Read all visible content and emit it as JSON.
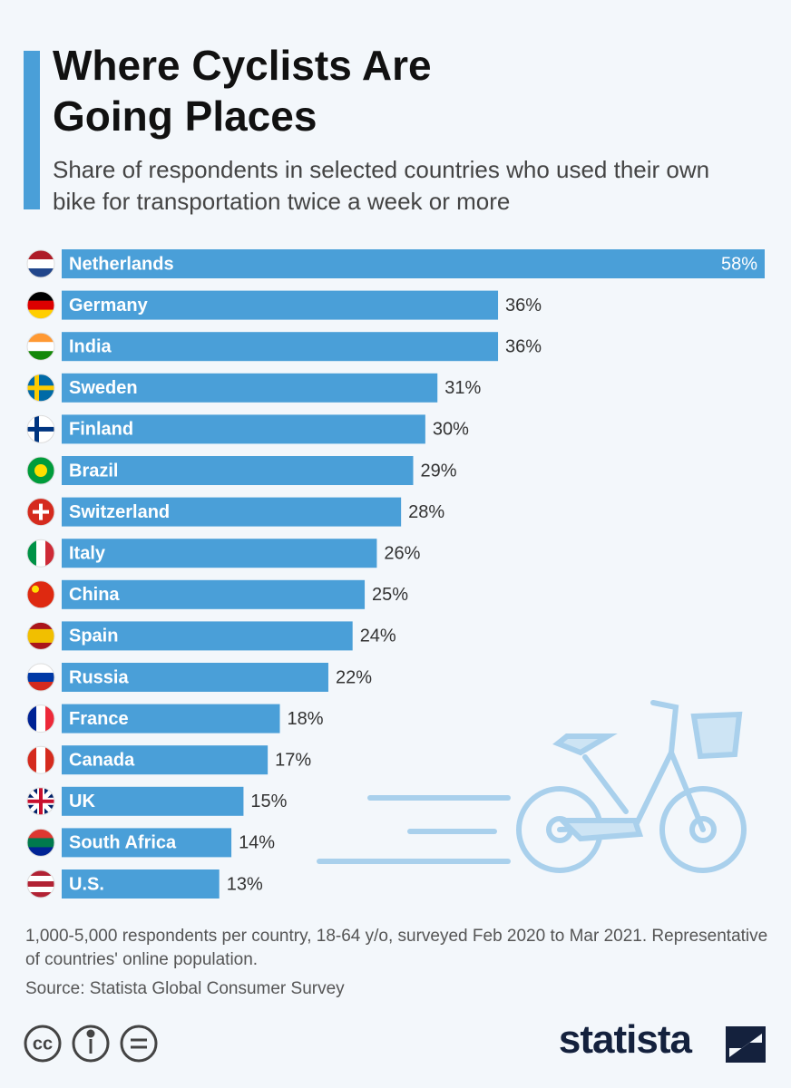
{
  "chart_data": {
    "type": "bar",
    "title": "Where Cyclists Are Going Places",
    "subtitle": "Share of respondents in selected countries who used their own bike for transportation twice a week or more",
    "categories": [
      "Netherlands",
      "Germany",
      "India",
      "Sweden",
      "Finland",
      "Brazil",
      "Switzerland",
      "Italy",
      "China",
      "Spain",
      "Russia",
      "France",
      "Canada",
      "UK",
      "South Africa",
      "U.S."
    ],
    "values": [
      58,
      36,
      36,
      31,
      30,
      29,
      28,
      26,
      25,
      24,
      22,
      18,
      17,
      15,
      14,
      13
    ],
    "value_labels": [
      "58%",
      "36%",
      "36%",
      "31%",
      "30%",
      "29%",
      "28%",
      "26%",
      "25%",
      "24%",
      "22%",
      "18%",
      "17%",
      "15%",
      "14%",
      "13%"
    ],
    "color": "#4a9fd8",
    "note": "1,000-5,000 respondents per country, 18-64 y/o, surveyed Feb 2020 to Mar 2021. Representative of countries' online population.",
    "source": "Source: Statista Global Consumer Survey"
  },
  "brand": "statista"
}
